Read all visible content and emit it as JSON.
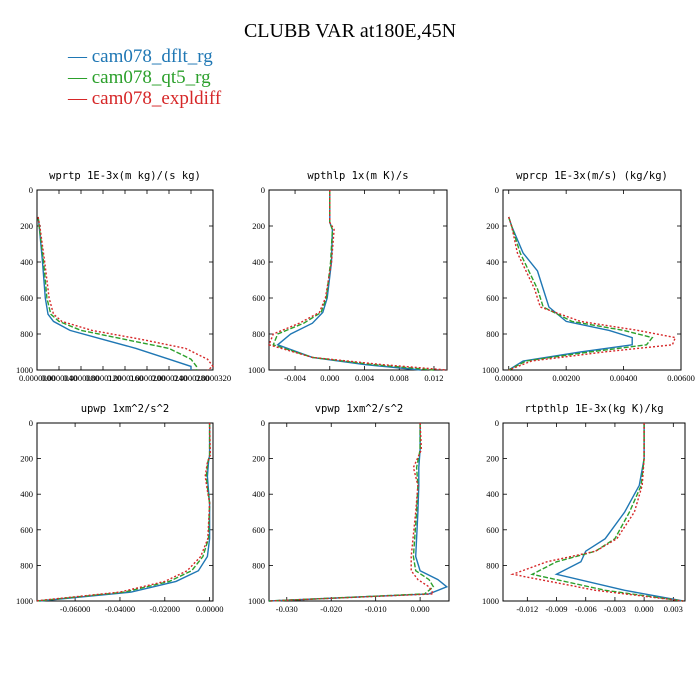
{
  "title": "CLUBB VAR at180E,45N",
  "legend": [
    {
      "label": "cam078_dflt_rg",
      "color": "#1f77b4"
    },
    {
      "label": "cam078_qt5_rg",
      "color": "#2ca02c"
    },
    {
      "label": "cam078_expldiff",
      "color": "#d62728"
    }
  ],
  "chart_data": [
    {
      "type": "line",
      "title": "wprtp  1E-3x(m kg)/(s kg)",
      "xlim": [
        0,
        3.2e-05
      ],
      "ylim": [
        0,
        1000
      ],
      "y_inverted": true,
      "xticks": [
        0,
        4e-06,
        8e-06,
        1.2e-05,
        1.6e-05,
        2e-05,
        2.4e-05,
        2.8e-05,
        3.2e-05
      ],
      "xticklabels": [
        "0.0000000",
        "0.0000040",
        "0.0000080",
        "0.0000120",
        "0.0000160",
        "0.0000200",
        "0.0000240",
        "0.0000280",
        "0.0000320"
      ],
      "yticks": [
        0,
        200,
        400,
        600,
        800,
        1000
      ],
      "yticklabels": [
        "0",
        "200",
        "400",
        "600",
        "800",
        "1000"
      ],
      "series": [
        {
          "name": "cam078_dflt_rg",
          "x": [
            2e-07,
            4e-07,
            1e-06,
            1.5e-06,
            2e-06,
            3e-06,
            6e-06,
            1.2e-05,
            1.8e-05,
            2.4e-05,
            2.8e-05,
            2.8e-05
          ],
          "y": [
            150,
            200,
            400,
            600,
            690,
            730,
            780,
            830,
            880,
            940,
            980,
            1000
          ]
        },
        {
          "name": "cam078_qt5_rg",
          "x": [
            2e-07,
            4e-07,
            1.2e-06,
            1.8e-06,
            2.5e-06,
            4e-06,
            8e-06,
            1.6e-05,
            2.4e-05,
            2.8e-05,
            2.9e-05,
            2.9e-05
          ],
          "y": [
            150,
            200,
            400,
            600,
            690,
            730,
            780,
            830,
            880,
            940,
            980,
            1000
          ]
        },
        {
          "name": "cam078_expldiff",
          "x": [
            2e-07,
            5e-07,
            1.4e-06,
            2.2e-06,
            3e-06,
            4.5e-06,
            1e-05,
            1.9e-05,
            2.7e-05,
            3.1e-05,
            3.2e-05,
            3.1e-05
          ],
          "y": [
            150,
            200,
            400,
            600,
            690,
            730,
            780,
            830,
            880,
            940,
            980,
            1000
          ]
        }
      ]
    },
    {
      "type": "line",
      "title": "wpthlp  1x(m K)/s",
      "xlim": [
        -0.007,
        0.0135
      ],
      "ylim": [
        0,
        1000
      ],
      "y_inverted": true,
      "xticks": [
        -0.004,
        0,
        0.004,
        0.008,
        0.012
      ],
      "xticklabels": [
        "-0.004",
        "0.000",
        "0.004",
        "0.008",
        "0.012"
      ],
      "yticks": [
        0,
        200,
        400,
        600,
        800,
        1000
      ],
      "yticklabels": [
        "0",
        "200",
        "400",
        "600",
        "800",
        "1000"
      ],
      "series": [
        {
          "name": "cam078_dflt_rg",
          "x": [
            0,
            0,
            0.0003,
            0.0002,
            -0.0003,
            -0.0008,
            -0.002,
            -0.0045,
            -0.006,
            -0.002,
            0.004,
            0.0105
          ],
          "y": [
            0,
            180,
            220,
            400,
            600,
            680,
            740,
            800,
            860,
            930,
            970,
            1000
          ]
        },
        {
          "name": "cam078_qt5_rg",
          "x": [
            0,
            0,
            0.0003,
            0.0001,
            -0.0004,
            -0.001,
            -0.003,
            -0.006,
            -0.0065,
            -0.002,
            0.005,
            0.012
          ],
          "y": [
            0,
            180,
            220,
            400,
            600,
            680,
            740,
            800,
            860,
            930,
            970,
            1000
          ]
        },
        {
          "name": "cam078_expldiff",
          "x": [
            0,
            0,
            0.0005,
            0.0002,
            -0.0005,
            -0.0012,
            -0.0035,
            -0.0065,
            -0.007,
            -0.002,
            0.006,
            0.0135
          ],
          "y": [
            0,
            180,
            220,
            400,
            600,
            680,
            740,
            800,
            860,
            930,
            970,
            1000
          ]
        }
      ]
    },
    {
      "type": "line",
      "title": "wprcp  1E-3x(m/s) (kg/kg)",
      "xlim": [
        -0.0002,
        0.006
      ],
      "ylim": [
        0,
        1000
      ],
      "y_inverted": true,
      "xticks": [
        0,
        0.002,
        0.004,
        0.006
      ],
      "xticklabels": [
        "0.00000",
        "0.00200",
        "0.00400",
        "0.00600"
      ],
      "yticks": [
        0,
        200,
        400,
        600,
        800,
        1000
      ],
      "yticklabels": [
        "0",
        "200",
        "400",
        "600",
        "800",
        "1000"
      ],
      "series": [
        {
          "name": "cam078_dflt_rg",
          "x": [
            0,
            0.0001,
            0.0005,
            0.001,
            0.0012,
            0.0014,
            0.002,
            0.0035,
            0.0043,
            0.0043,
            0.0025,
            0.0005,
            0
          ],
          "y": [
            150,
            200,
            350,
            450,
            550,
            650,
            730,
            780,
            820,
            860,
            900,
            950,
            1000
          ]
        },
        {
          "name": "cam078_qt5_rg",
          "x": [
            0,
            0.0001,
            0.0004,
            0.0007,
            0.001,
            0.0012,
            0.0022,
            0.004,
            0.005,
            0.0048,
            0.0028,
            0.0006,
            0
          ],
          "y": [
            150,
            200,
            350,
            450,
            550,
            650,
            730,
            780,
            820,
            860,
            900,
            950,
            1000
          ]
        },
        {
          "name": "cam078_expldiff",
          "x": [
            0,
            0.0001,
            0.0003,
            0.0006,
            0.0009,
            0.0011,
            0.0025,
            0.0045,
            0.0058,
            0.0057,
            0.0033,
            0.0008,
            0
          ],
          "y": [
            150,
            200,
            350,
            450,
            550,
            650,
            730,
            780,
            820,
            860,
            900,
            950,
            1000
          ]
        }
      ]
    },
    {
      "type": "line",
      "title": "upwp  1xm^2/s^2",
      "xlim": [
        -0.077,
        0.0015
      ],
      "ylim": [
        0,
        1000
      ],
      "y_inverted": true,
      "xticks": [
        -0.06,
        -0.04,
        -0.02,
        0
      ],
      "xticklabels": [
        "-0.06000",
        "-0.04000",
        "-0.02000",
        "0.00000"
      ],
      "yticks": [
        0,
        200,
        400,
        600,
        800,
        1000
      ],
      "yticklabels": [
        "0",
        "200",
        "400",
        "600",
        "800",
        "1000"
      ],
      "series": [
        {
          "name": "cam078_dflt_rg",
          "x": [
            0,
            0,
            -0.0005,
            -0.001,
            -0.0005,
            0,
            0,
            -0.001,
            -0.005,
            -0.015,
            -0.035,
            -0.076
          ],
          "y": [
            0,
            180,
            220,
            300,
            380,
            450,
            650,
            750,
            830,
            890,
            950,
            1000
          ]
        },
        {
          "name": "cam078_qt5_rg",
          "x": [
            0,
            0,
            -0.0008,
            -0.0015,
            -0.0008,
            0,
            -0.0005,
            -0.003,
            -0.008,
            -0.018,
            -0.038,
            -0.077
          ],
          "y": [
            0,
            180,
            220,
            300,
            380,
            450,
            650,
            750,
            830,
            890,
            950,
            1000
          ]
        },
        {
          "name": "cam078_expldiff",
          "x": [
            0,
            0.0003,
            -0.001,
            -0.002,
            -0.001,
            0,
            -0.0008,
            -0.004,
            -0.01,
            -0.02,
            -0.04,
            -0.078
          ],
          "y": [
            0,
            180,
            220,
            300,
            380,
            450,
            650,
            750,
            830,
            890,
            950,
            1000
          ]
        }
      ]
    },
    {
      "type": "line",
      "title": "vpwp  1xm^2/s^2",
      "xlim": [
        -0.034,
        0.0065
      ],
      "ylim": [
        0,
        1000
      ],
      "y_inverted": true,
      "xticks": [
        -0.03,
        -0.02,
        -0.01,
        0
      ],
      "xticklabels": [
        "-0.030",
        "-0.020",
        "-0.010",
        "0.000"
      ],
      "yticks": [
        0,
        200,
        400,
        600,
        800,
        1000
      ],
      "yticklabels": [
        "0",
        "200",
        "400",
        "600",
        "800",
        "1000"
      ],
      "series": [
        {
          "name": "cam078_dflt_rg",
          "x": [
            0,
            0,
            -0.0003,
            -0.0003,
            -0.0005,
            -0.001,
            0,
            0.004,
            0.006,
            0.002,
            -0.034
          ],
          "y": [
            0,
            150,
            250,
            350,
            500,
            750,
            830,
            880,
            920,
            960,
            1000
          ]
        },
        {
          "name": "cam078_qt5_rg",
          "x": [
            0,
            0,
            -0.0008,
            -0.0005,
            -0.0008,
            -0.0015,
            -0.001,
            0.002,
            0.003,
            0.001,
            -0.034
          ],
          "y": [
            0,
            150,
            250,
            350,
            500,
            750,
            830,
            880,
            920,
            960,
            1000
          ]
        },
        {
          "name": "cam078_expldiff",
          "x": [
            0,
            0.0003,
            -0.0015,
            -0.0005,
            -0.001,
            -0.002,
            -0.002,
            -0.0005,
            0.002,
            0.003,
            -0.034
          ],
          "y": [
            0,
            150,
            250,
            350,
            500,
            750,
            830,
            880,
            920,
            960,
            1000
          ]
        }
      ]
    },
    {
      "type": "line",
      "title": "rtpthlp  1E-3x(kg K)/kg",
      "xlim": [
        -0.0145,
        0.0042
      ],
      "ylim": [
        0,
        1000
      ],
      "y_inverted": true,
      "xticks": [
        -0.012,
        -0.009,
        -0.006,
        -0.003,
        0,
        0.003
      ],
      "xticklabels": [
        "-0.012",
        "-0.009",
        "-0.006",
        "-0.003",
        "0.000",
        "0.003"
      ],
      "yticks": [
        0,
        200,
        400,
        600,
        800,
        1000
      ],
      "yticklabels": [
        "0",
        "200",
        "400",
        "600",
        "800",
        "1000"
      ],
      "series": [
        {
          "name": "cam078_dflt_rg",
          "x": [
            0,
            0,
            -0.0005,
            -0.002,
            -0.004,
            -0.006,
            -0.0065,
            -0.009,
            -0.002,
            0.004
          ],
          "y": [
            0,
            200,
            350,
            500,
            650,
            720,
            780,
            850,
            940,
            1000
          ]
        },
        {
          "name": "cam078_qt5_rg",
          "x": [
            0,
            0,
            -0.0003,
            -0.0015,
            -0.003,
            -0.005,
            -0.009,
            -0.0115,
            -0.004,
            0.004
          ],
          "y": [
            0,
            200,
            350,
            500,
            650,
            720,
            780,
            850,
            940,
            1000
          ]
        },
        {
          "name": "cam078_expldiff",
          "x": [
            0,
            0,
            -0.0002,
            -0.001,
            -0.0028,
            -0.005,
            -0.01,
            -0.0135,
            -0.005,
            0.004
          ],
          "y": [
            0,
            200,
            350,
            500,
            650,
            720,
            780,
            850,
            940,
            1000
          ]
        }
      ]
    }
  ]
}
